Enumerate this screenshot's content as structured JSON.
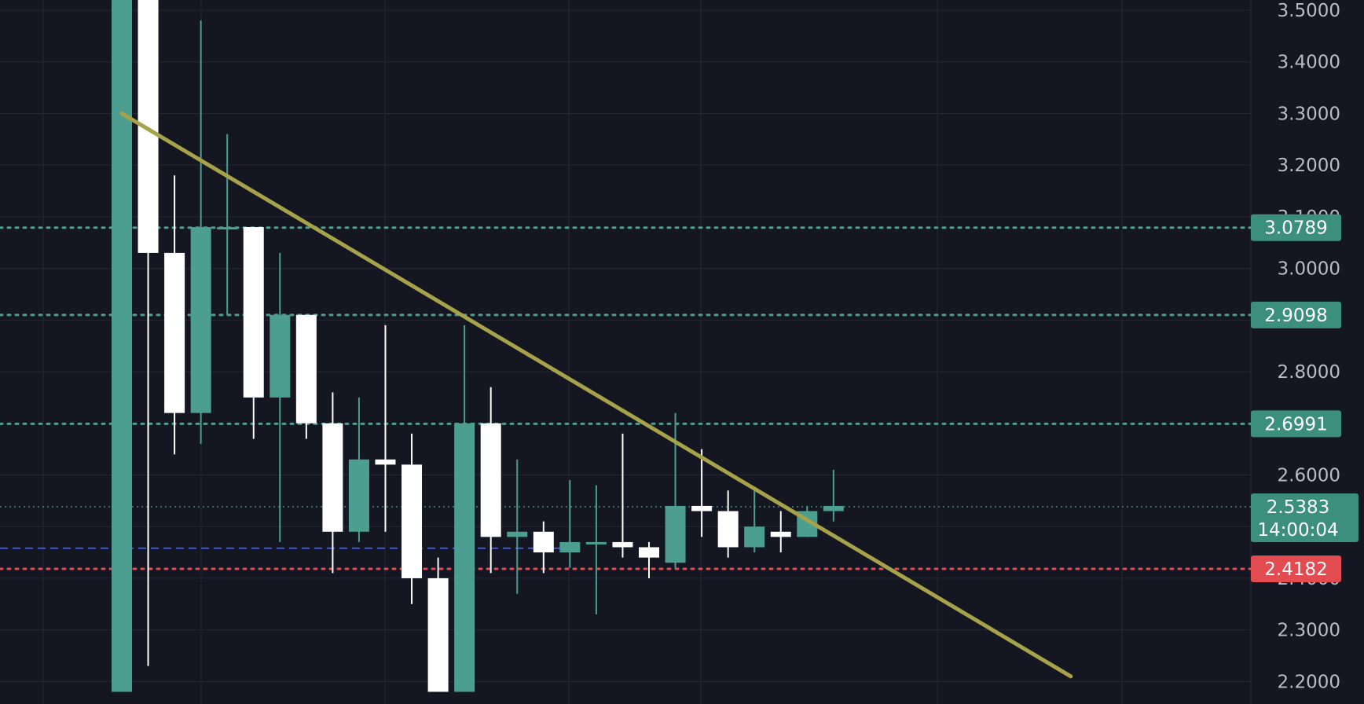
{
  "chart_data": {
    "type": "candlestick",
    "title": "",
    "ylim": [
      2.18,
      3.52
    ],
    "y_ticks": [
      "3.5000",
      "3.4000",
      "3.3000",
      "3.2000",
      "3.1000",
      "3.0000",
      "2.9000",
      "2.8000",
      "2.6000",
      "2.5000",
      "2.4000",
      "2.3000",
      "2.2000"
    ],
    "grid": true,
    "colors": {
      "background": "#141721",
      "grid": "#232734",
      "up": "#4c9e90",
      "down": "#ffffff",
      "trendline": "#a6a24a",
      "level": "#4c9e90",
      "stop": "#e24b50",
      "blue_line": "#3d57d6",
      "tag_green": "#3d8f7d",
      "tag_red": "#e24b50"
    },
    "candles": [
      {
        "o": 2.18,
        "h": 3.52,
        "l": 2.18,
        "c": 3.52
      },
      {
        "o": 3.52,
        "h": 3.52,
        "l": 2.23,
        "c": 3.03
      },
      {
        "o": 3.03,
        "h": 3.18,
        "l": 2.64,
        "c": 2.72
      },
      {
        "o": 2.72,
        "h": 3.48,
        "l": 2.66,
        "c": 3.08
      },
      {
        "o": 3.08,
        "h": 3.26,
        "l": 2.91,
        "c": 3.08
      },
      {
        "o": 3.08,
        "h": 3.08,
        "l": 2.67,
        "c": 2.75
      },
      {
        "o": 2.75,
        "h": 3.03,
        "l": 2.47,
        "c": 2.91
      },
      {
        "o": 2.91,
        "h": 2.91,
        "l": 2.67,
        "c": 2.7
      },
      {
        "o": 2.7,
        "h": 2.76,
        "l": 2.41,
        "c": 2.49
      },
      {
        "o": 2.49,
        "h": 2.75,
        "l": 2.47,
        "c": 2.63
      },
      {
        "o": 2.63,
        "h": 2.89,
        "l": 2.49,
        "c": 2.62
      },
      {
        "o": 2.62,
        "h": 2.68,
        "l": 2.35,
        "c": 2.4
      },
      {
        "o": 2.4,
        "h": 2.44,
        "l": 2.18,
        "c": 2.18
      },
      {
        "o": 2.18,
        "h": 2.89,
        "l": 2.18,
        "c": 2.7
      },
      {
        "o": 2.7,
        "h": 2.77,
        "l": 2.41,
        "c": 2.48
      },
      {
        "o": 2.48,
        "h": 2.63,
        "l": 2.37,
        "c": 2.49
      },
      {
        "o": 2.49,
        "h": 2.51,
        "l": 2.41,
        "c": 2.45
      },
      {
        "o": 2.45,
        "h": 2.59,
        "l": 2.42,
        "c": 2.47
      },
      {
        "o": 2.47,
        "h": 2.58,
        "l": 2.33,
        "c": 2.47
      },
      {
        "o": 2.47,
        "h": 2.68,
        "l": 2.44,
        "c": 2.46
      },
      {
        "o": 2.46,
        "h": 2.47,
        "l": 2.4,
        "c": 2.44
      },
      {
        "o": 2.43,
        "h": 2.72,
        "l": 2.42,
        "c": 2.54
      },
      {
        "o": 2.54,
        "h": 2.65,
        "l": 2.48,
        "c": 2.53
      },
      {
        "o": 2.53,
        "h": 2.57,
        "l": 2.44,
        "c": 2.46
      },
      {
        "o": 2.46,
        "h": 2.57,
        "l": 2.45,
        "c": 2.5
      },
      {
        "o": 2.49,
        "h": 2.53,
        "l": 2.45,
        "c": 2.48
      },
      {
        "o": 2.48,
        "h": 2.54,
        "l": 2.48,
        "c": 2.53
      },
      {
        "o": 2.53,
        "h": 2.61,
        "l": 2.51,
        "c": 2.54
      }
    ],
    "trendline": {
      "start": [
        0,
        3.3
      ],
      "end": [
        36,
        2.21
      ]
    },
    "levels": [
      {
        "value": 3.0789,
        "label": "3.0789",
        "style": "level"
      },
      {
        "value": 2.9098,
        "label": "2.9098",
        "style": "level"
      },
      {
        "value": 2.6991,
        "label": "2.6991",
        "style": "level"
      },
      {
        "value": 2.4182,
        "label": "2.4182",
        "style": "stop"
      }
    ],
    "blue_line": {
      "value": 2.458
    },
    "current_price": {
      "value": 2.5383,
      "label": "2.5383",
      "countdown": "14:00:04"
    }
  }
}
